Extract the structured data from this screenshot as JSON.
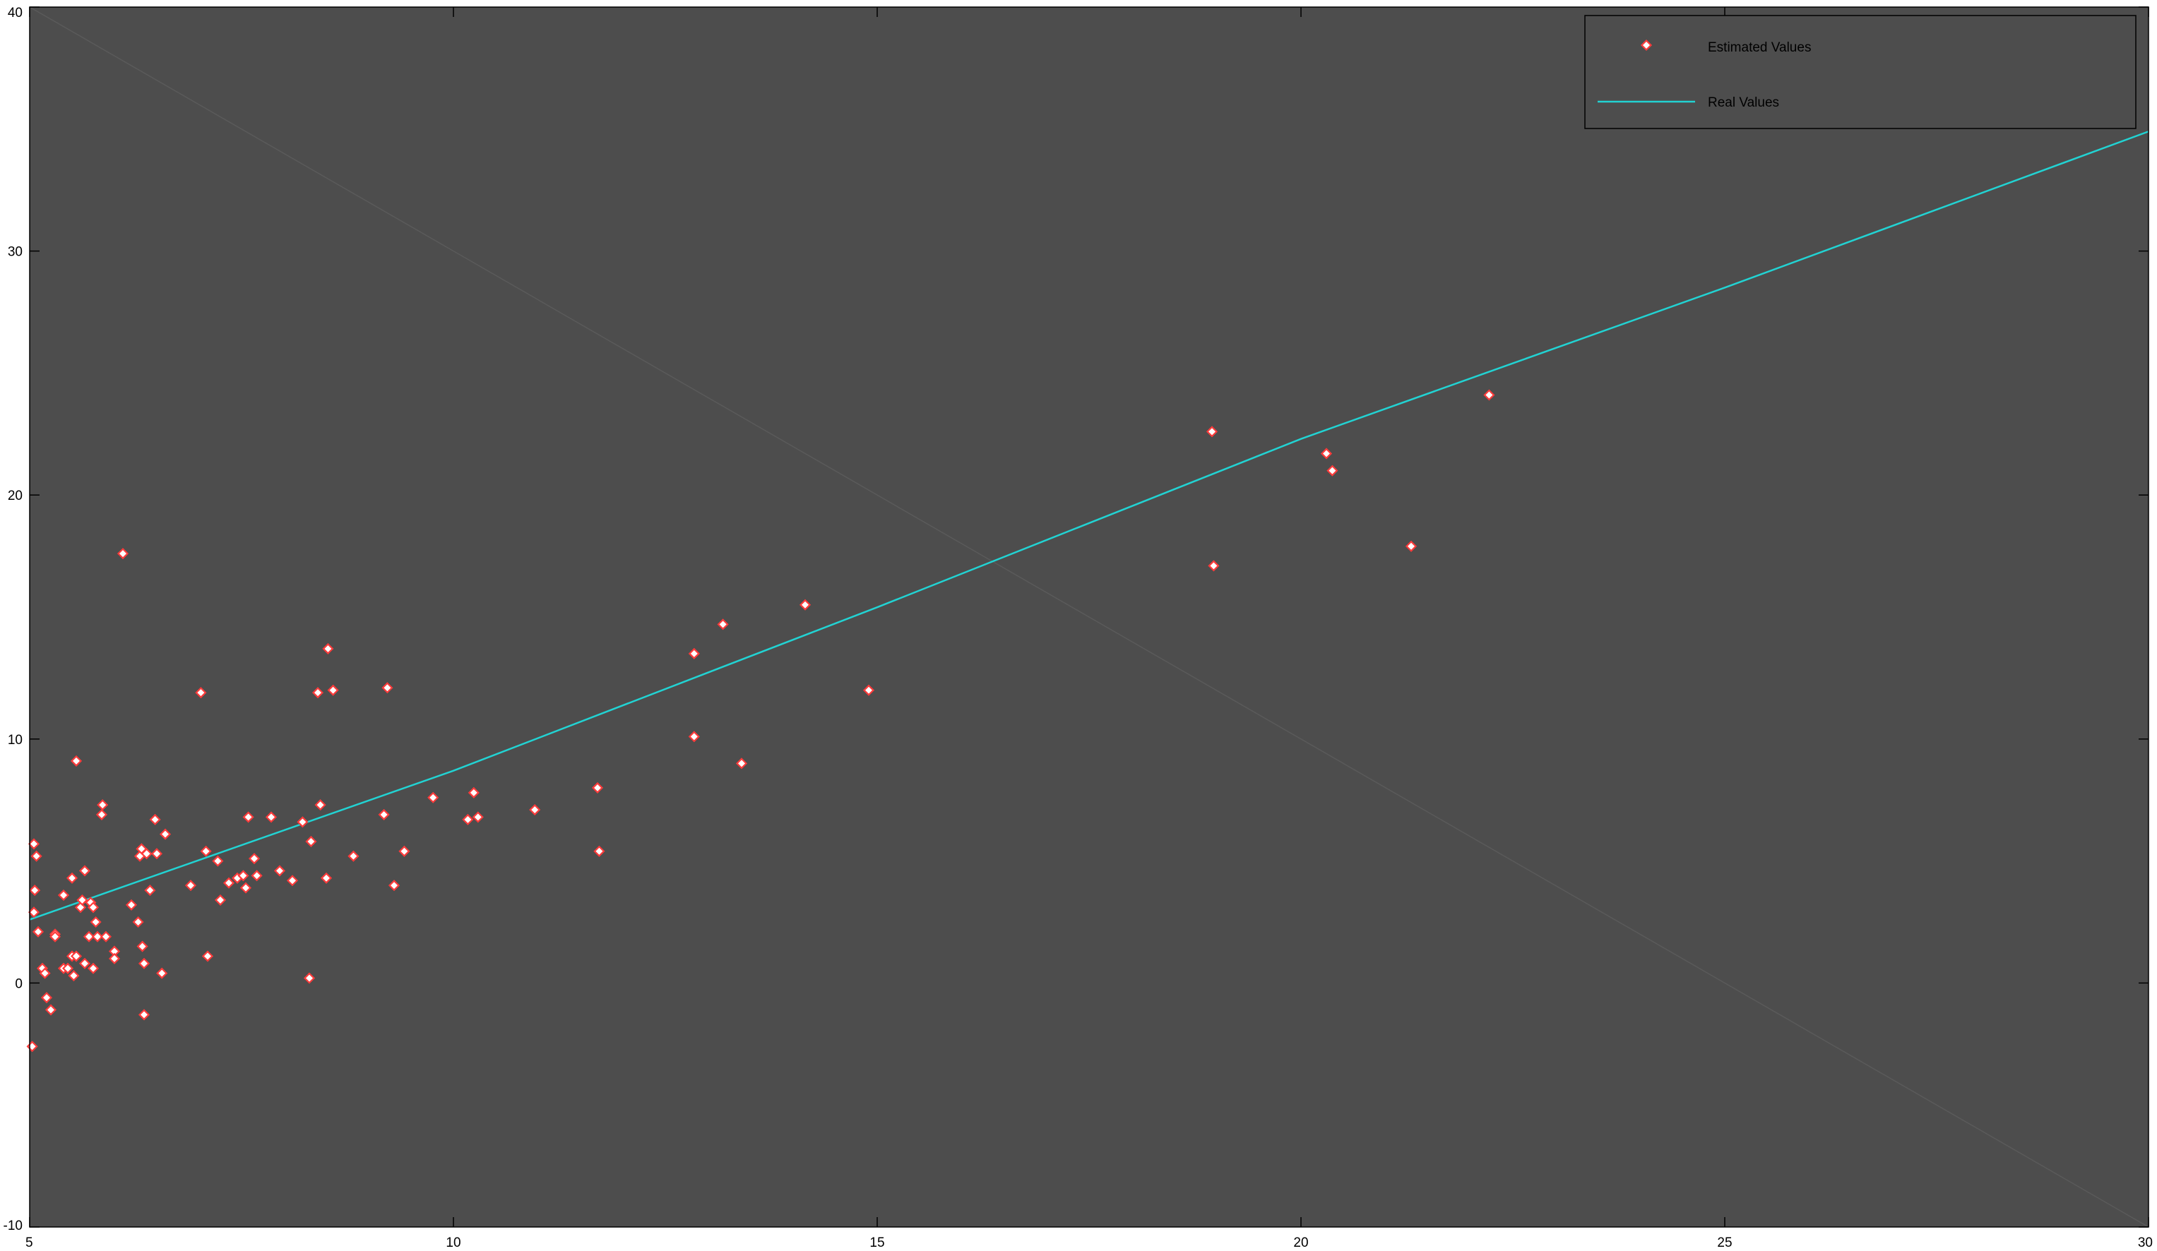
{
  "chart_data": {
    "type": "scatter",
    "title": "",
    "xlabel": "",
    "ylabel": "",
    "xlim": [
      5,
      30
    ],
    "ylim": [
      -10,
      40
    ],
    "xticks": [
      5,
      10,
      15,
      20,
      25,
      30
    ],
    "yticks": [
      -10,
      0,
      10,
      20,
      30,
      40
    ],
    "grid": false,
    "legend_position": "top-right",
    "colors": {
      "plot_background": "#4d4d4d",
      "estimated_marker": "#ff3b3b",
      "real_line": "#22d3d3",
      "axis": "#000000",
      "figure_background": "#ffffff"
    },
    "series": [
      {
        "name": "Estimated Values",
        "kind": "scatter",
        "marker": "diamond",
        "points": [
          [
            5.05,
            5.7
          ],
          [
            5.06,
            3.8
          ],
          [
            5.08,
            5.2
          ],
          [
            5.05,
            2.9
          ],
          [
            5.03,
            -2.6
          ],
          [
            5.1,
            2.1
          ],
          [
            5.15,
            0.6
          ],
          [
            5.18,
            0.4
          ],
          [
            5.2,
            -0.6
          ],
          [
            5.25,
            -1.1
          ],
          [
            5.3,
            2.0
          ],
          [
            5.3,
            1.9
          ],
          [
            5.4,
            3.6
          ],
          [
            5.4,
            0.6
          ],
          [
            5.45,
            0.6
          ],
          [
            5.5,
            4.3
          ],
          [
            5.5,
            1.1
          ],
          [
            5.52,
            0.3
          ],
          [
            5.55,
            1.1
          ],
          [
            5.55,
            9.1
          ],
          [
            5.6,
            3.1
          ],
          [
            5.62,
            3.4
          ],
          [
            5.65,
            4.6
          ],
          [
            5.65,
            0.8
          ],
          [
            5.7,
            1.9
          ],
          [
            5.72,
            3.3
          ],
          [
            5.75,
            3.1
          ],
          [
            5.75,
            0.6
          ],
          [
            5.78,
            2.5
          ],
          [
            5.8,
            1.9
          ],
          [
            5.85,
            6.9
          ],
          [
            5.86,
            7.3
          ],
          [
            5.9,
            1.9
          ],
          [
            6.0,
            1.3
          ],
          [
            6.0,
            1.0
          ],
          [
            6.1,
            17.6
          ],
          [
            6.2,
            3.2
          ],
          [
            6.28,
            2.5
          ],
          [
            6.3,
            5.2
          ],
          [
            6.32,
            5.5
          ],
          [
            6.33,
            1.5
          ],
          [
            6.35,
            0.8
          ],
          [
            6.35,
            -1.3
          ],
          [
            6.38,
            5.3
          ],
          [
            6.42,
            3.8
          ],
          [
            6.48,
            6.7
          ],
          [
            6.5,
            5.3
          ],
          [
            6.56,
            0.4
          ],
          [
            6.6,
            6.1
          ],
          [
            6.9,
            4.0
          ],
          [
            7.02,
            11.9
          ],
          [
            7.08,
            5.4
          ],
          [
            7.1,
            1.1
          ],
          [
            7.22,
            5.0
          ],
          [
            7.25,
            3.4
          ],
          [
            7.35,
            4.1
          ],
          [
            7.45,
            4.3
          ],
          [
            7.52,
            4.4
          ],
          [
            7.55,
            3.9
          ],
          [
            7.58,
            6.8
          ],
          [
            7.65,
            5.1
          ],
          [
            7.68,
            4.4
          ],
          [
            7.85,
            6.8
          ],
          [
            7.95,
            4.6
          ],
          [
            8.1,
            4.2
          ],
          [
            8.22,
            6.6
          ],
          [
            8.3,
            0.2
          ],
          [
            8.32,
            5.8
          ],
          [
            8.4,
            11.9
          ],
          [
            8.43,
            7.3
          ],
          [
            8.5,
            4.3
          ],
          [
            8.52,
            13.7
          ],
          [
            8.58,
            12.0
          ],
          [
            8.82,
            5.2
          ],
          [
            9.18,
            6.9
          ],
          [
            9.22,
            12.1
          ],
          [
            9.3,
            4.0
          ],
          [
            9.42,
            5.4
          ],
          [
            9.76,
            7.6
          ],
          [
            10.17,
            6.7
          ],
          [
            10.24,
            7.8
          ],
          [
            10.29,
            6.8
          ],
          [
            10.96,
            7.1
          ],
          [
            11.7,
            8.0
          ],
          [
            11.72,
            5.4
          ],
          [
            12.84,
            13.5
          ],
          [
            12.84,
            10.1
          ],
          [
            13.18,
            14.7
          ],
          [
            13.4,
            9.0
          ],
          [
            14.15,
            15.5
          ],
          [
            14.9,
            12.0
          ],
          [
            18.95,
            22.6
          ],
          [
            18.97,
            17.1
          ],
          [
            20.3,
            21.7
          ],
          [
            20.37,
            21.0
          ],
          [
            21.3,
            17.9
          ],
          [
            22.22,
            24.1
          ]
        ]
      },
      {
        "name": "Real Values",
        "kind": "line",
        "points": [
          [
            5,
            2.6
          ],
          [
            10,
            8.7
          ],
          [
            15,
            15.4
          ],
          [
            20,
            22.3
          ],
          [
            25,
            28.5
          ],
          [
            30,
            34.9
          ]
        ]
      }
    ]
  }
}
